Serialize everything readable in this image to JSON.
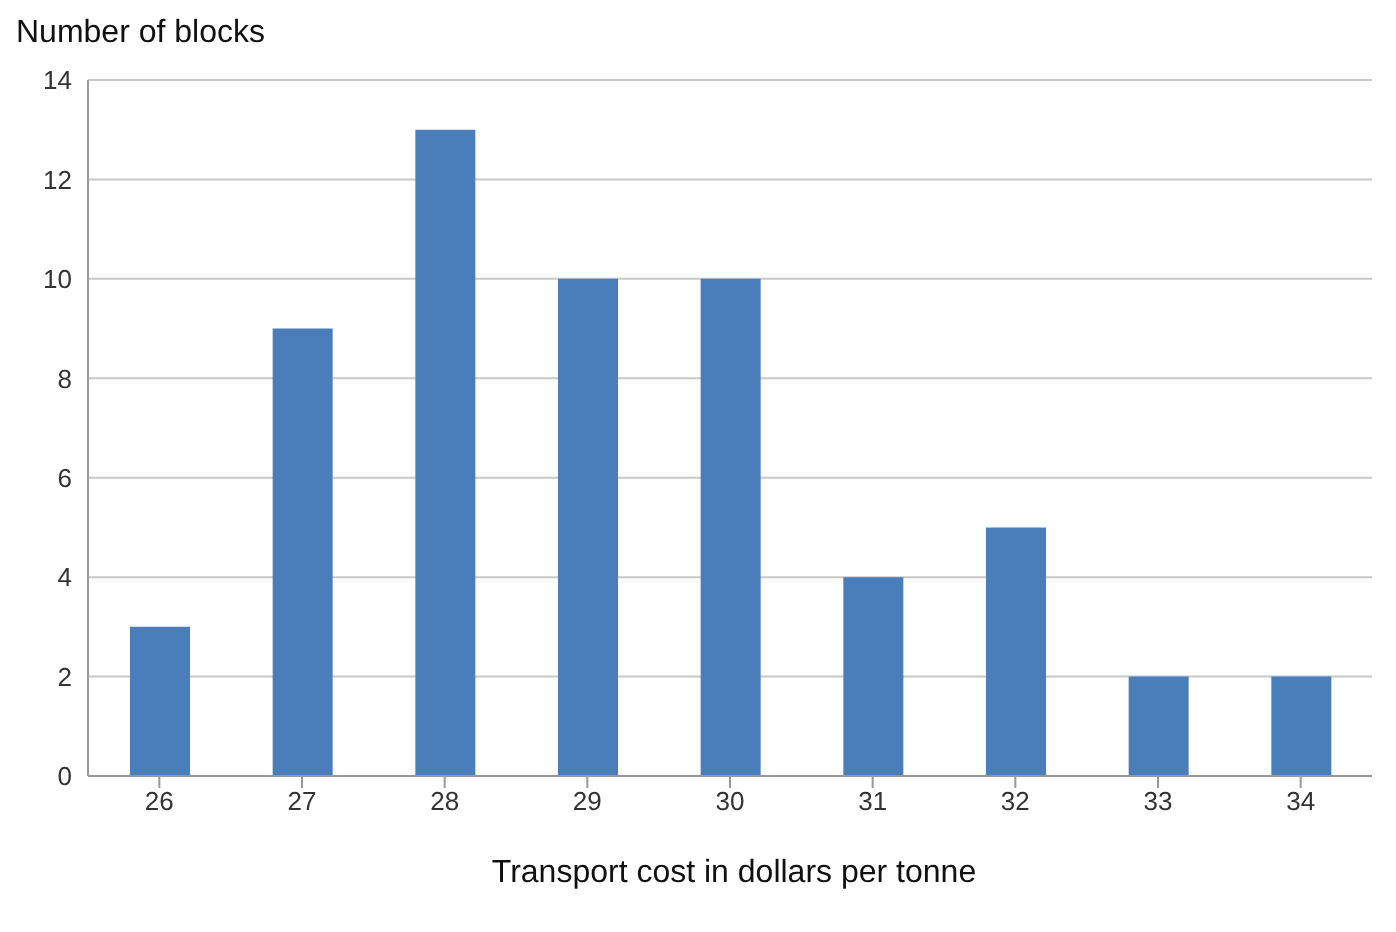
{
  "chart_data": {
    "type": "bar",
    "ylabel": "Number of blocks",
    "xlabel": "Transport cost in dollars per tonne",
    "categories": [
      "26",
      "27",
      "28",
      "29",
      "30",
      "31",
      "32",
      "33",
      "34"
    ],
    "values": [
      3,
      9,
      13,
      10,
      10,
      4,
      5,
      2,
      2
    ],
    "color": "#4a7ebb",
    "ylim": [
      0,
      14
    ],
    "yticks": [
      0,
      2,
      4,
      6,
      8,
      10,
      12,
      14
    ],
    "grid": "y"
  }
}
